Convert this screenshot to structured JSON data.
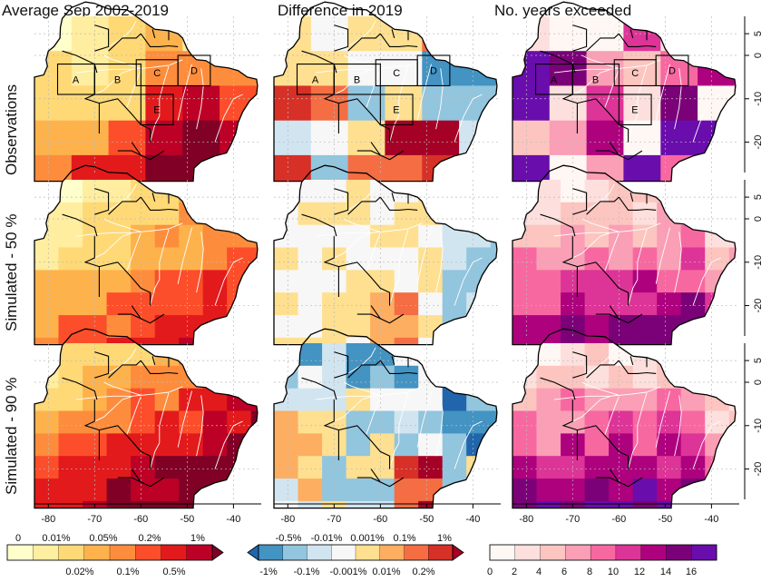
{
  "columns": [
    "Average Sep 2002-2019",
    "Difference in 2019",
    "No. years exceeded"
  ],
  "rows": [
    "Observations",
    "Simulated - 50 %",
    "Simulated - 90 %"
  ],
  "region_boxes": [
    "A",
    "B",
    "C",
    "D",
    "E"
  ],
  "longitude_ticks": [
    "-80",
    "-70",
    "-60",
    "-50",
    "-40"
  ],
  "latitude_ticks": [
    "5",
    "0",
    "-10",
    "-20"
  ],
  "legend_avg": {
    "top_labels": [
      "0",
      "0.01%",
      "0.05%",
      "0.2%",
      "1%"
    ],
    "bottom_labels": [
      "0.02%",
      "0.1%",
      "0.5%"
    ],
    "colors": [
      "#ffffcc",
      "#ffeda0",
      "#fed976",
      "#feb24c",
      "#fd8d3c",
      "#fc4e2a",
      "#e31a1c",
      "#bd0026",
      "#800026"
    ]
  },
  "legend_diff": {
    "top_labels": [
      "-0.5%",
      "-0.01%",
      "0.001%",
      "0.1%",
      "1%"
    ],
    "bottom_labels": [
      "-1%",
      "-0.1%",
      "-0.001%",
      "0.01%",
      "0.2%"
    ],
    "colors": [
      "#2166ac",
      "#4393c3",
      "#92c5de",
      "#d1e5f0",
      "#f7f7f7",
      "#fee090",
      "#fdae61",
      "#f46d43",
      "#d73027",
      "#a50026"
    ]
  },
  "legend_years": {
    "labels": [
      "0",
      "2",
      "4",
      "6",
      "8",
      "10",
      "12",
      "14",
      "16"
    ],
    "colors": [
      "#fff7f3",
      "#fde0dd",
      "#fcc5c0",
      "#fa9fb5",
      "#f768a1",
      "#dd3497",
      "#ae017e",
      "#7a0177",
      "#6a0dad"
    ]
  }
}
